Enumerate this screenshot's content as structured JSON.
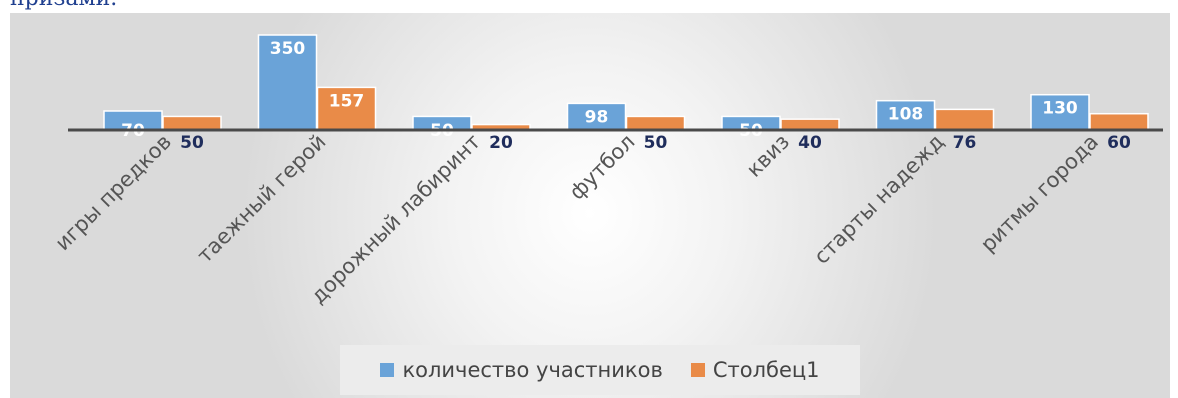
{
  "header": {
    "partial_text": "призами."
  },
  "colors": {
    "series1": "#6aa3d8",
    "series2": "#e98b48",
    "axis": "#4a4a4a",
    "label_light": "#ffffff",
    "label_dark": "#1f2d5c"
  },
  "chart_data": {
    "type": "bar",
    "categories": [
      "игры предков",
      "таежный герой",
      "дорожный лабиринт",
      "футбол",
      "квиз",
      "старты надежд",
      "ритмы города"
    ],
    "series": [
      {
        "name": "количество участников",
        "values": [
          70,
          350,
          50,
          98,
          50,
          108,
          130
        ]
      },
      {
        "name": "Столбец1",
        "values": [
          50,
          157,
          20,
          50,
          40,
          76,
          60
        ]
      }
    ],
    "title": "",
    "xlabel": "",
    "ylabel": "",
    "ylim": [
      0,
      400
    ],
    "grid": false,
    "legend": "bottom"
  }
}
